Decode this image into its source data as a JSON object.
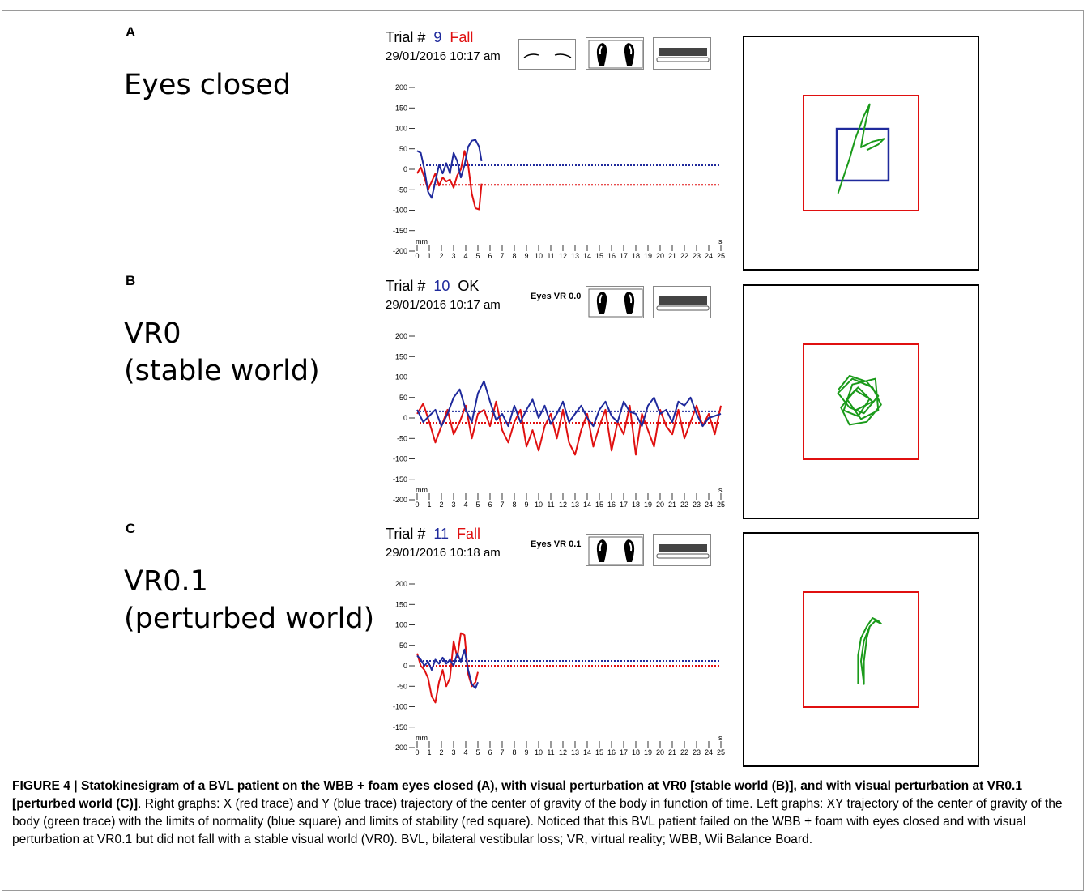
{
  "panels": [
    {
      "letter": "A",
      "condition": "Eyes closed",
      "trial_label": "Trial #",
      "trial_number": "9",
      "status": "Fall",
      "status_color": "#e01010",
      "datetime": "29/01/2016 10:17 am",
      "eyes_label": "",
      "eyes_icon": "eyes-closed-icon"
    },
    {
      "letter": "B",
      "condition": "VR0\n(stable world)",
      "trial_label": "Trial #",
      "trial_number": "10",
      "status": "OK",
      "status_color": "#000000",
      "datetime": "29/01/2016 10:17 am",
      "eyes_label": "Eyes VR 0.0",
      "eyes_icon": ""
    },
    {
      "letter": "C",
      "condition": "VR0.1\n(perturbed world)",
      "trial_label": "Trial #",
      "trial_number": "11",
      "status": "Fall",
      "status_color": "#e01010",
      "datetime": "29/01/2016 10:18 am",
      "eyes_label": "Eyes VR 0.1",
      "eyes_icon": ""
    }
  ],
  "colors": {
    "x_trace": "#e01010",
    "y_trace": "#1f2a9c",
    "cog_trace": "#1a9a1a",
    "stability_square": "#e01010",
    "normality_square": "#1f2a9c"
  },
  "chart_data": [
    {
      "type": "line",
      "panel": "A",
      "y_tick_labels": [
        "200",
        "150",
        "100",
        "50",
        "0",
        "-50",
        "-100",
        "-150",
        "-200"
      ],
      "x_tick_labels": [
        "0",
        "1",
        "2",
        "3",
        "4",
        "5",
        "6",
        "7",
        "8",
        "9",
        "10",
        "11",
        "12",
        "13",
        "14",
        "15",
        "16",
        "17",
        "18",
        "19",
        "20",
        "21",
        "22",
        "23",
        "24",
        "25"
      ],
      "ylabel": "mm",
      "xlabel": "s",
      "ylim": [
        -200,
        200
      ],
      "xlim": [
        0,
        25
      ],
      "series": [
        {
          "color": "#e01010",
          "mean": -38,
          "x": [
            0,
            0.3,
            0.6,
            0.9,
            1.2,
            1.5,
            1.8,
            2.1,
            2.4,
            2.7,
            3.0,
            3.3,
            3.6,
            3.9,
            4.2,
            4.5,
            4.8,
            5.1,
            5.3
          ],
          "values": [
            -10,
            5,
            -20,
            -50,
            -30,
            -10,
            -40,
            -20,
            -30,
            -25,
            -45,
            -15,
            0,
            45,
            10,
            -60,
            -95,
            -98,
            -35
          ]
        },
        {
          "color": "#1f2a9c",
          "mean": 10,
          "x": [
            0,
            0.3,
            0.6,
            0.9,
            1.2,
            1.5,
            1.8,
            2.1,
            2.4,
            2.7,
            3.0,
            3.3,
            3.6,
            3.9,
            4.2,
            4.5,
            4.8,
            5.1,
            5.3
          ],
          "values": [
            45,
            40,
            0,
            -55,
            -70,
            -30,
            10,
            -10,
            15,
            -10,
            40,
            20,
            -20,
            10,
            55,
            70,
            72,
            55,
            20
          ]
        }
      ]
    },
    {
      "type": "line",
      "panel": "B",
      "y_tick_labels": [
        "200",
        "150",
        "100",
        "50",
        "0",
        "-50",
        "-100",
        "-150",
        "-200"
      ],
      "x_tick_labels": [
        "0",
        "1",
        "2",
        "3",
        "4",
        "5",
        "6",
        "7",
        "8",
        "9",
        "10",
        "11",
        "12",
        "13",
        "14",
        "15",
        "16",
        "17",
        "18",
        "19",
        "20",
        "21",
        "22",
        "23",
        "24",
        "25"
      ],
      "ylabel": "mm",
      "xlabel": "s",
      "ylim": [
        -200,
        200
      ],
      "xlim": [
        0,
        25
      ],
      "series": [
        {
          "color": "#e01010",
          "mean": -12,
          "x": [
            0,
            0.5,
            1,
            1.5,
            2,
            2.5,
            3,
            3.5,
            4,
            4.5,
            5,
            5.5,
            6,
            6.5,
            7,
            7.5,
            8,
            8.5,
            9,
            9.5,
            10,
            10.5,
            11,
            11.5,
            12,
            12.5,
            13,
            13.5,
            14,
            14.5,
            15,
            15.5,
            16,
            16.5,
            17,
            17.5,
            18,
            18.5,
            19,
            19.5,
            20,
            20.5,
            21,
            21.5,
            22,
            22.5,
            23,
            23.5,
            24,
            24.5,
            25
          ],
          "values": [
            10,
            35,
            -10,
            -60,
            -20,
            20,
            -40,
            -10,
            30,
            -50,
            10,
            20,
            -20,
            40,
            -30,
            -60,
            -10,
            20,
            -70,
            -30,
            -80,
            -20,
            10,
            -50,
            20,
            -60,
            -90,
            -30,
            10,
            -70,
            -20,
            20,
            -80,
            -10,
            -40,
            30,
            -90,
            10,
            -30,
            -70,
            20,
            -20,
            -40,
            20,
            -50,
            -10,
            30,
            -20,
            10,
            -40,
            30
          ]
        },
        {
          "color": "#1f2a9c",
          "mean": 16,
          "x": [
            0,
            0.5,
            1,
            1.5,
            2,
            2.5,
            3,
            3.5,
            4,
            4.5,
            5,
            5.5,
            6,
            6.5,
            7,
            7.5,
            8,
            8.5,
            9,
            9.5,
            10,
            10.5,
            11,
            11.5,
            12,
            12.5,
            13,
            13.5,
            14,
            14.5,
            15,
            15.5,
            16,
            16.5,
            17,
            17.5,
            18,
            18.5,
            19,
            19.5,
            20,
            20.5,
            21,
            21.5,
            22,
            22.5,
            23,
            23.5,
            24,
            24.5,
            25
          ],
          "values": [
            20,
            -10,
            5,
            20,
            -20,
            10,
            50,
            70,
            20,
            -10,
            60,
            90,
            40,
            -5,
            10,
            -20,
            30,
            -10,
            20,
            45,
            0,
            30,
            -15,
            10,
            40,
            -10,
            10,
            30,
            0,
            -20,
            20,
            40,
            5,
            -10,
            40,
            15,
            10,
            -20,
            30,
            50,
            10,
            20,
            -10,
            40,
            30,
            50,
            10,
            -20,
            0,
            5,
            10
          ]
        }
      ]
    },
    {
      "type": "line",
      "panel": "C",
      "y_tick_labels": [
        "200",
        "150",
        "100",
        "50",
        "0",
        "-50",
        "-100",
        "-150",
        "-200"
      ],
      "x_tick_labels": [
        "0",
        "1",
        "2",
        "3",
        "4",
        "5",
        "6",
        "7",
        "8",
        "9",
        "10",
        "11",
        "12",
        "13",
        "14",
        "15",
        "16",
        "17",
        "18",
        "19",
        "20",
        "21",
        "22",
        "23",
        "24",
        "25"
      ],
      "ylabel": "mm",
      "xlabel": "s",
      "ylim": [
        -200,
        200
      ],
      "xlim": [
        0,
        25
      ],
      "series": [
        {
          "color": "#e01010",
          "mean": 0,
          "x": [
            0,
            0.3,
            0.6,
            0.9,
            1.2,
            1.5,
            1.8,
            2.1,
            2.4,
            2.7,
            3.0,
            3.3,
            3.6,
            3.9,
            4.2,
            4.5,
            4.8,
            5.0
          ],
          "values": [
            30,
            0,
            -10,
            -30,
            -75,
            -90,
            -40,
            -10,
            -50,
            -30,
            60,
            20,
            80,
            75,
            -20,
            -50,
            -40,
            -15
          ]
        },
        {
          "color": "#1f2a9c",
          "mean": 12,
          "x": [
            0,
            0.3,
            0.6,
            0.9,
            1.2,
            1.5,
            1.8,
            2.1,
            2.4,
            2.7,
            3.0,
            3.3,
            3.6,
            3.9,
            4.2,
            4.5,
            4.8,
            5.0
          ],
          "values": [
            25,
            15,
            0,
            10,
            -10,
            15,
            5,
            20,
            5,
            15,
            0,
            30,
            10,
            40,
            -10,
            -45,
            -55,
            -40
          ]
        }
      ]
    },
    {
      "type": "scatter",
      "panel": "A",
      "stability_half_width": 100,
      "normality_half_width": 45,
      "xlim": [
        -200,
        200
      ],
      "ylim": [
        -200,
        200
      ],
      "trajectory": [
        [
          -40,
          -70
        ],
        [
          -30,
          -40
        ],
        [
          -20,
          -10
        ],
        [
          -10,
          25
        ],
        [
          5,
          65
        ],
        [
          15,
          85
        ],
        [
          5,
          40
        ],
        [
          0,
          10
        ],
        [
          20,
          20
        ],
        [
          40,
          25
        ],
        [
          30,
          15
        ],
        [
          10,
          5
        ]
      ]
    },
    {
      "type": "scatter",
      "panel": "B",
      "stability_half_width": 100,
      "normality_half_width": null,
      "xlim": [
        -200,
        200
      ],
      "ylim": [
        -200,
        200
      ],
      "trajectory": [
        [
          -40,
          20
        ],
        [
          -20,
          45
        ],
        [
          10,
          35
        ],
        [
          30,
          10
        ],
        [
          5,
          -20
        ],
        [
          -20,
          -10
        ],
        [
          -40,
          15
        ],
        [
          -15,
          40
        ],
        [
          20,
          25
        ],
        [
          35,
          -5
        ],
        [
          10,
          -35
        ],
        [
          -20,
          -40
        ],
        [
          -35,
          -10
        ],
        [
          -10,
          20
        ],
        [
          15,
          5
        ],
        [
          -5,
          -25
        ],
        [
          -30,
          -15
        ],
        [
          -15,
          30
        ],
        [
          25,
          40
        ],
        [
          30,
          -15
        ],
        [
          0,
          -30
        ],
        [
          -25,
          5
        ],
        [
          -5,
          25
        ],
        [
          20,
          0
        ],
        [
          -10,
          -15
        ]
      ]
    },
    {
      "type": "scatter",
      "panel": "C",
      "stability_half_width": 100,
      "normality_half_width": null,
      "xlim": [
        -200,
        200
      ],
      "ylim": [
        -200,
        200
      ],
      "trajectory": [
        [
          -5,
          -60
        ],
        [
          -5,
          -10
        ],
        [
          0,
          20
        ],
        [
          10,
          40
        ],
        [
          20,
          55
        ],
        [
          30,
          50
        ],
        [
          35,
          45
        ],
        [
          25,
          50
        ],
        [
          15,
          40
        ],
        [
          5,
          15
        ],
        [
          0,
          -20
        ],
        [
          5,
          -60
        ],
        [
          5,
          -20
        ],
        [
          10,
          20
        ],
        [
          15,
          40
        ]
      ]
    }
  ],
  "caption": {
    "lead": "FIGURE 4 | Statokinesigram of a BVL patient on the WBB + foam eyes closed (A), with visual perturbation at VR0 [stable world (B)], and with visual perturbation at VR0.1 [perturbed world (C)]",
    "body": ". Right graphs: X (red trace) and Y (blue trace) trajectory of the center of gravity of the body in function of time. Left graphs: XY trajectory of the center of gravity of the body (green trace) with the limits of normality (blue square) and limits of stability (red square). Noticed that this BVL patient failed on the WBB + foam with eyes closed and with visual perturbation at VR0.1 but did not fall with a stable visual world (VR0). BVL, bilateral vestibular loss; VR, virtual reality; WBB, Wii Balance Board."
  }
}
